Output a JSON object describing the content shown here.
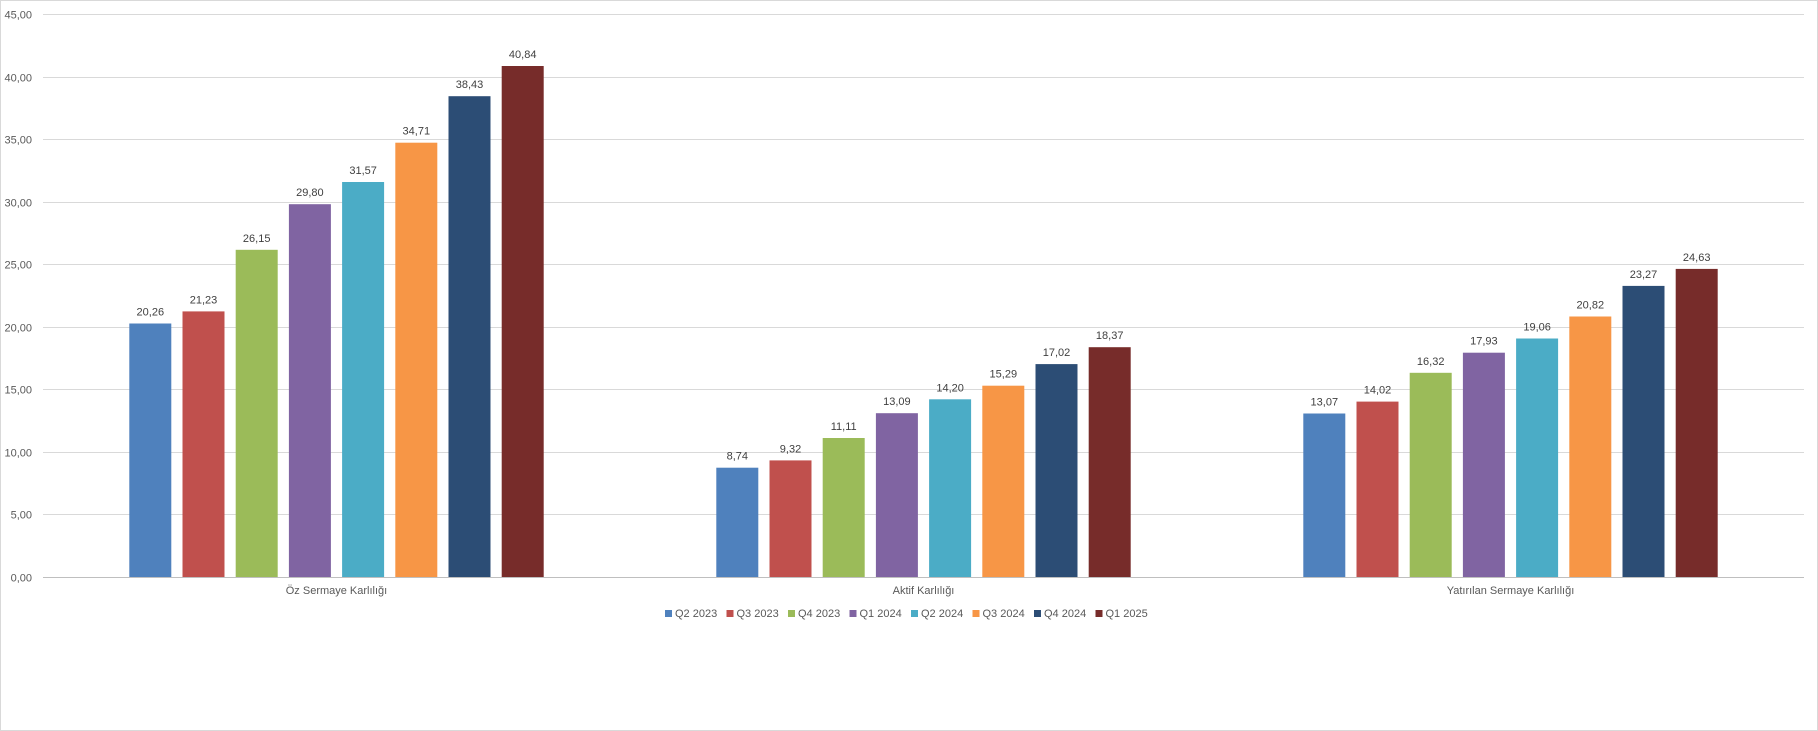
{
  "chart_data": {
    "type": "bar",
    "title": "",
    "xlabel": "",
    "ylabel": "",
    "ylim": [
      0,
      45
    ],
    "yticks": [
      "0,00",
      "5,00",
      "10,00",
      "15,00",
      "20,00",
      "25,00",
      "30,00",
      "35,00",
      "40,00",
      "45,00"
    ],
    "ytick_values": [
      0,
      5,
      10,
      15,
      20,
      25,
      30,
      35,
      40,
      45
    ],
    "grid": true,
    "legend_position": "bottom",
    "categories": [
      "Öz Sermaye Karlılığı",
      "Aktif Karlılığı",
      "Yatırılan Sermaye Karlılığı"
    ],
    "series": [
      {
        "name": "Q2 2023",
        "color": "#4f81bd",
        "values": [
          20.26,
          8.74,
          13.07
        ],
        "labels": [
          "20,26",
          "8,74",
          "13,07"
        ]
      },
      {
        "name": "Q3 2023",
        "color": "#c0504d",
        "values": [
          21.23,
          9.32,
          14.02
        ],
        "labels": [
          "21,23",
          "9,32",
          "14,02"
        ]
      },
      {
        "name": "Q4 2023",
        "color": "#9bbb59",
        "values": [
          26.15,
          11.11,
          16.32
        ],
        "labels": [
          "26,15",
          "11,11",
          "16,32"
        ]
      },
      {
        "name": "Q1 2024",
        "color": "#8064a2",
        "values": [
          29.8,
          13.09,
          17.93
        ],
        "labels": [
          "29,80",
          "13,09",
          "17,93"
        ]
      },
      {
        "name": "Q2 2024",
        "color": "#4bacc6",
        "values": [
          31.57,
          14.2,
          19.06
        ],
        "labels": [
          "31,57",
          "14,20",
          "19,06"
        ]
      },
      {
        "name": "Q3 2024",
        "color": "#f79646",
        "values": [
          34.71,
          15.29,
          20.82
        ],
        "labels": [
          "34,71",
          "15,29",
          "20,82"
        ]
      },
      {
        "name": "Q4 2024",
        "color": "#2c4d75",
        "values": [
          38.43,
          17.02,
          23.27
        ],
        "labels": [
          "38,43",
          "17,02",
          "23,27"
        ]
      },
      {
        "name": "Q1 2025",
        "color": "#772c2a",
        "values": [
          40.84,
          18.37,
          24.63
        ],
        "labels": [
          "40,84",
          "18,37",
          "24,63"
        ]
      }
    ]
  }
}
